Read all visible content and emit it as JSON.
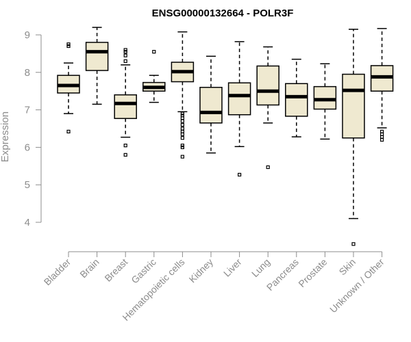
{
  "chart_data": {
    "type": "boxplot",
    "title": "ENSG00000132664 - POLR3F",
    "ylabel": "Expression",
    "xlabel": "",
    "ylim": [
      3.3,
      9.3
    ],
    "yticks": [
      4,
      5,
      6,
      7,
      8,
      9
    ],
    "grid": false,
    "colors": {
      "box_fill": "#efe9d0",
      "box_stroke": "#000000",
      "axis": "#8c8c8c"
    },
    "categories": [
      "Bladder",
      "Brain",
      "Breast",
      "Gastric",
      "Hematopoietic cells",
      "Kidney",
      "Liver",
      "Lung",
      "Pancreas",
      "Prostate",
      "Skin",
      "Unknown / Other"
    ],
    "boxes": [
      {
        "category": "Bladder",
        "whisker_low": 6.9,
        "q1": 7.45,
        "median": 7.65,
        "q3": 7.92,
        "whisker_high": 8.25,
        "outliers": [
          8.75,
          8.7,
          6.42
        ]
      },
      {
        "category": "Brain",
        "whisker_low": 7.15,
        "q1": 8.05,
        "median": 8.55,
        "q3": 8.8,
        "whisker_high": 9.2,
        "outliers": []
      },
      {
        "category": "Breast",
        "whisker_low": 6.27,
        "q1": 6.77,
        "median": 7.17,
        "q3": 7.4,
        "whisker_high": 8.2,
        "outliers": [
          8.6,
          8.55,
          8.45,
          8.3,
          6.05,
          5.8
        ]
      },
      {
        "category": "Gastric",
        "whisker_low": 7.2,
        "q1": 7.5,
        "median": 7.6,
        "q3": 7.73,
        "whisker_high": 7.92,
        "outliers": [
          8.55
        ]
      },
      {
        "category": "Hematopoietic cells",
        "whisker_low": 6.95,
        "q1": 7.75,
        "median": 8.02,
        "q3": 8.27,
        "whisker_high": 9.08,
        "outliers": [
          6.9,
          6.85,
          6.78,
          6.7,
          6.6,
          6.5,
          6.42,
          6.35,
          6.25,
          6.05,
          6.0,
          5.75
        ]
      },
      {
        "category": "Kidney",
        "whisker_low": 5.85,
        "q1": 6.65,
        "median": 6.93,
        "q3": 7.6,
        "whisker_high": 8.43,
        "outliers": []
      },
      {
        "category": "Liver",
        "whisker_low": 6.02,
        "q1": 6.87,
        "median": 7.38,
        "q3": 7.72,
        "whisker_high": 8.82,
        "outliers": [
          5.27
        ]
      },
      {
        "category": "Lung",
        "whisker_low": 6.65,
        "q1": 7.13,
        "median": 7.5,
        "q3": 8.17,
        "whisker_high": 8.68,
        "outliers": [
          5.47
        ]
      },
      {
        "category": "Pancreas",
        "whisker_low": 6.28,
        "q1": 6.83,
        "median": 7.35,
        "q3": 7.7,
        "whisker_high": 8.35,
        "outliers": []
      },
      {
        "category": "Prostate",
        "whisker_low": 6.22,
        "q1": 7.02,
        "median": 7.27,
        "q3": 7.62,
        "whisker_high": 8.23,
        "outliers": []
      },
      {
        "category": "Skin",
        "whisker_low": 4.1,
        "q1": 6.25,
        "median": 7.52,
        "q3": 7.95,
        "whisker_high": 9.15,
        "outliers": [
          3.42
        ]
      },
      {
        "category": "Unknown / Other",
        "whisker_low": 6.52,
        "q1": 7.5,
        "median": 7.88,
        "q3": 8.18,
        "whisker_high": 9.17,
        "outliers": [
          6.42,
          6.35,
          6.28,
          6.2
        ]
      }
    ]
  }
}
